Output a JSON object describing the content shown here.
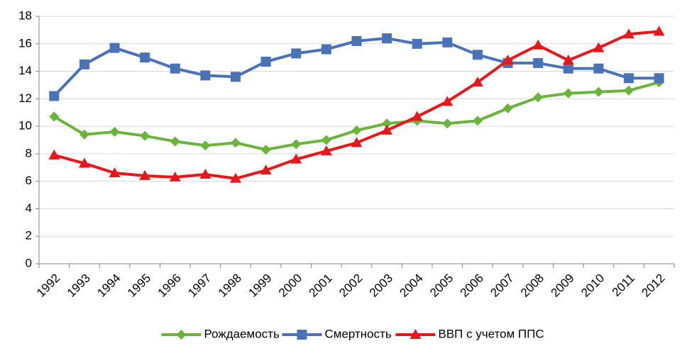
{
  "chart_data": {
    "type": "line",
    "categories": [
      "1992",
      "1993",
      "1994",
      "1995",
      "1996",
      "1997",
      "1998",
      "1999",
      "2000",
      "2001",
      "2002",
      "2003",
      "2004",
      "2005",
      "2006",
      "2007",
      "2008",
      "2009",
      "2010",
      "2011",
      "2012"
    ],
    "series": [
      {
        "name": "Рождаемость",
        "color": "#6ab43c",
        "marker": "diamond",
        "values": [
          10.7,
          9.4,
          9.6,
          9.3,
          8.9,
          8.6,
          8.8,
          8.3,
          8.7,
          9.0,
          9.7,
          10.2,
          10.4,
          10.2,
          10.4,
          11.3,
          12.1,
          12.4,
          12.5,
          12.6,
          13.2
        ]
      },
      {
        "name": "Смертность",
        "color": "#4a72b8",
        "marker": "square",
        "values": [
          12.2,
          14.5,
          15.7,
          15.0,
          14.2,
          13.7,
          13.6,
          14.7,
          15.3,
          15.6,
          16.2,
          16.4,
          16.0,
          16.1,
          15.2,
          14.6,
          14.6,
          14.2,
          14.2,
          13.5,
          13.5
        ]
      },
      {
        "name": "ВВП с учетом ППС",
        "color": "#e8171c",
        "marker": "triangle",
        "values": [
          7.9,
          7.3,
          6.6,
          6.4,
          6.3,
          6.5,
          6.2,
          6.8,
          7.6,
          8.2,
          8.8,
          9.7,
          10.7,
          11.8,
          13.2,
          14.8,
          15.9,
          14.8,
          15.7,
          16.7,
          16.9
        ]
      }
    ],
    "ylim": [
      0,
      18
    ],
    "yticks": [
      0,
      2,
      4,
      6,
      8,
      10,
      12,
      14,
      16,
      18
    ],
    "grid": true,
    "legend": "bottom"
  }
}
